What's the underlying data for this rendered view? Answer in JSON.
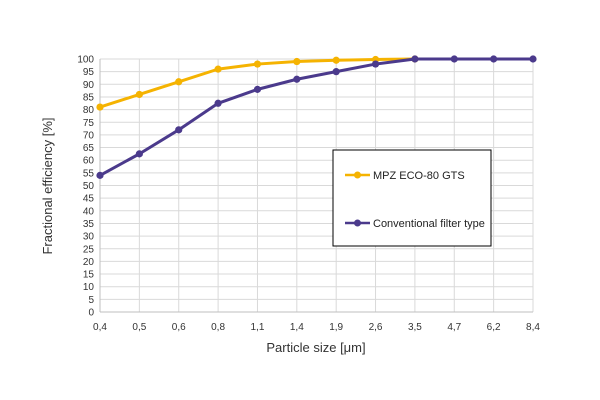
{
  "chart_data": {
    "type": "line",
    "categories": [
      "0,4",
      "0,5",
      "0,6",
      "0,8",
      "1,1",
      "1,4",
      "1,9",
      "2,6",
      "3,5",
      "4,7",
      "6,2",
      "8,4"
    ],
    "series": [
      {
        "name": "MPZ ECO-80 GTS",
        "color": "#F5B301",
        "values": [
          81,
          86,
          91,
          96,
          98,
          99,
          99.5,
          99.8,
          100,
          null,
          null,
          null
        ]
      },
      {
        "name": "Conventional filter type",
        "color": "#4B3A8C",
        "values": [
          54,
          62.5,
          72,
          82.5,
          88,
          92,
          95,
          98,
          100,
          100,
          100,
          100
        ]
      }
    ],
    "xlabel": "Particle size [μm]",
    "ylabel": "Fractional efficiency [%]",
    "ylim": [
      0,
      100
    ],
    "ystep": 5,
    "grid": true,
    "legend_position": "right"
  }
}
